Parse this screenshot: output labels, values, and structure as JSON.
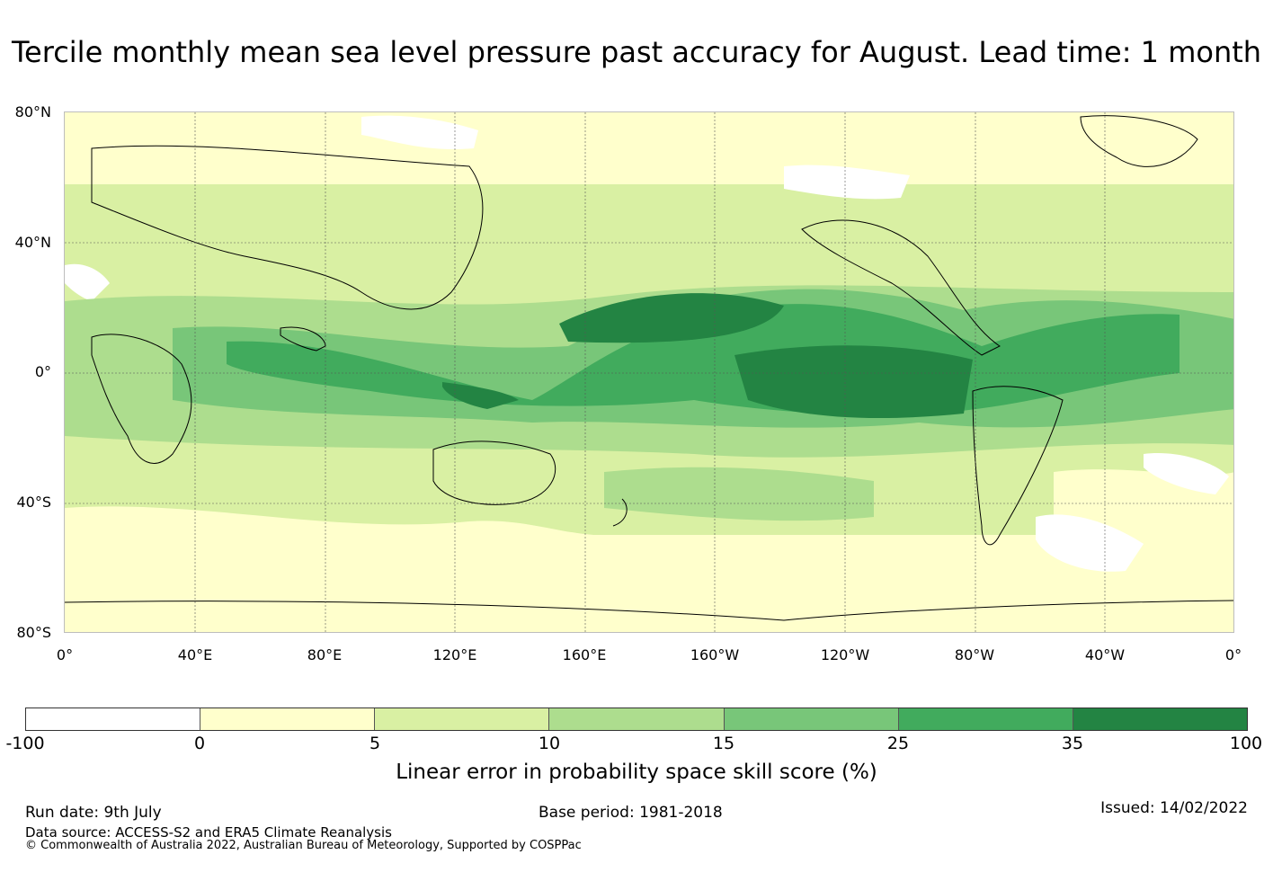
{
  "title": "Tercile monthly mean sea level pressure past accuracy for August. Lead time: 1 month",
  "map": {
    "lat_labels": [
      "80°N",
      "40°N",
      "0°",
      "40°S",
      "80°S"
    ],
    "lon_labels": [
      "0°",
      "40°E",
      "80°E",
      "120°E",
      "160°E",
      "160°W",
      "120°W",
      "80°W",
      "40°W",
      "0°"
    ],
    "ocean_fill": "#d8efa3"
  },
  "colorbar": {
    "ticks": [
      "-100",
      "0",
      "5",
      "10",
      "15",
      "25",
      "35",
      "100"
    ],
    "colors": [
      "#ffffff",
      "#ffffcc",
      "#d9f0a3",
      "#addd8e",
      "#78c679",
      "#41ab5d",
      "#238443"
    ],
    "label": "Linear error in probability space skill score (%)"
  },
  "footer": {
    "run_date": "Run date: 9th July",
    "base_period": "Base period: 1981-2018",
    "issued": "Issued: 14/02/2022",
    "data_source": "Data source: ACCESS-S2 and ERA5 Climate Reanalysis",
    "copyright": "© Commonwealth of Australia 2022, Australian Bureau of Meteorology, Supported by COSPPac"
  }
}
